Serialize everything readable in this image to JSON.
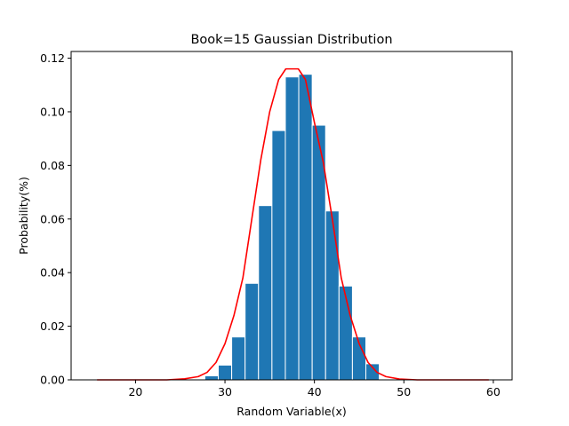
{
  "chart_data": {
    "type": "bar",
    "title": "Book=15 Gaussian Distribution",
    "xlabel": "Random Variable(x)",
    "ylabel": "Probability(%)",
    "xlim": [
      12.8,
      62.1
    ],
    "ylim": [
      0,
      0.1225
    ],
    "xticks": [
      20,
      30,
      40,
      50,
      60
    ],
    "yticks": [
      0.0,
      0.02,
      0.04,
      0.06,
      0.08,
      0.1,
      0.12
    ],
    "ytick_labels": [
      "0.00",
      "0.02",
      "0.04",
      "0.06",
      "0.08",
      "0.10",
      "0.12"
    ],
    "grid": false,
    "bar_width": 1.5,
    "bars": {
      "color": "#1f77b4",
      "edgecolor": "#ffffff",
      "x": [
        28.5,
        30,
        31.5,
        33,
        34.5,
        36,
        37.5,
        39,
        40.5,
        42,
        43.5,
        45,
        46.5
      ],
      "values": [
        0.0015,
        0.0055,
        0.016,
        0.036,
        0.065,
        0.093,
        0.113,
        0.114,
        0.095,
        0.063,
        0.035,
        0.016,
        0.006
      ]
    },
    "curve": {
      "color": "#ff0000",
      "x": [
        15.7,
        17.5,
        19.5,
        21.5,
        23.5,
        25.5,
        27,
        28,
        29,
        30,
        31,
        32,
        33,
        34,
        35,
        36,
        36.8,
        38.2,
        39,
        40,
        41,
        42,
        43,
        44,
        45,
        46,
        47,
        48,
        49.5,
        51.5,
        53.5,
        55.5,
        57.5,
        59.5
      ],
      "y": [
        0,
        0,
        0,
        0,
        0,
        0.0004,
        0.0012,
        0.0028,
        0.0065,
        0.0135,
        0.024,
        0.038,
        0.06,
        0.082,
        0.1,
        0.112,
        0.116,
        0.116,
        0.112,
        0.096,
        0.081,
        0.06,
        0.038,
        0.024,
        0.0135,
        0.0065,
        0.0028,
        0.0012,
        0.0003,
        0,
        0,
        0,
        0,
        0
      ]
    }
  }
}
